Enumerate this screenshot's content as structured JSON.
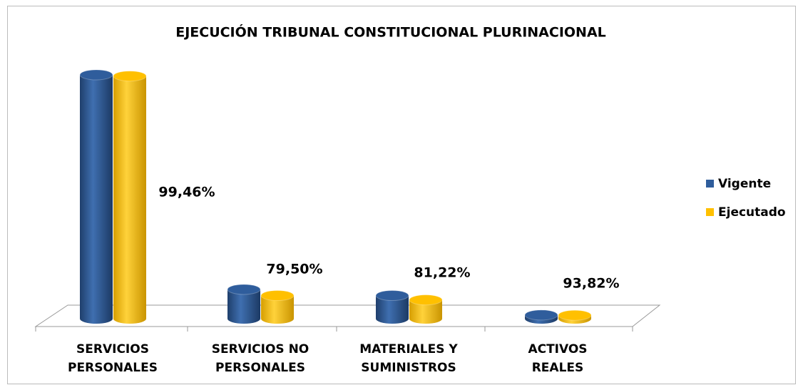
{
  "chart_data": {
    "type": "bar3d",
    "title": "EJECUCIÓN TRIBUNAL CONSTITUCIONAL PLURINACIONAL",
    "categories": [
      [
        "SERVICIOS",
        "PERSONALES"
      ],
      [
        "SERVICIOS NO",
        "PERSONALES"
      ],
      [
        "MATERIALES Y",
        "SUMINISTROS"
      ],
      [
        "ACTIVOS",
        "REALES"
      ]
    ],
    "series": [
      {
        "name": "Vigente",
        "color": "#2f5d9c",
        "values": [
          100,
          12,
          9.5,
          1.5
        ]
      },
      {
        "name": "Ejecutado",
        "color": "#ffc000",
        "values": [
          99.5,
          9.5,
          7.7,
          1.4
        ]
      }
    ],
    "annotations": [
      "99,46%",
      "79,50%",
      "81,22%",
      "93,82%"
    ],
    "ylim": [
      0,
      100
    ],
    "legend": "right"
  }
}
